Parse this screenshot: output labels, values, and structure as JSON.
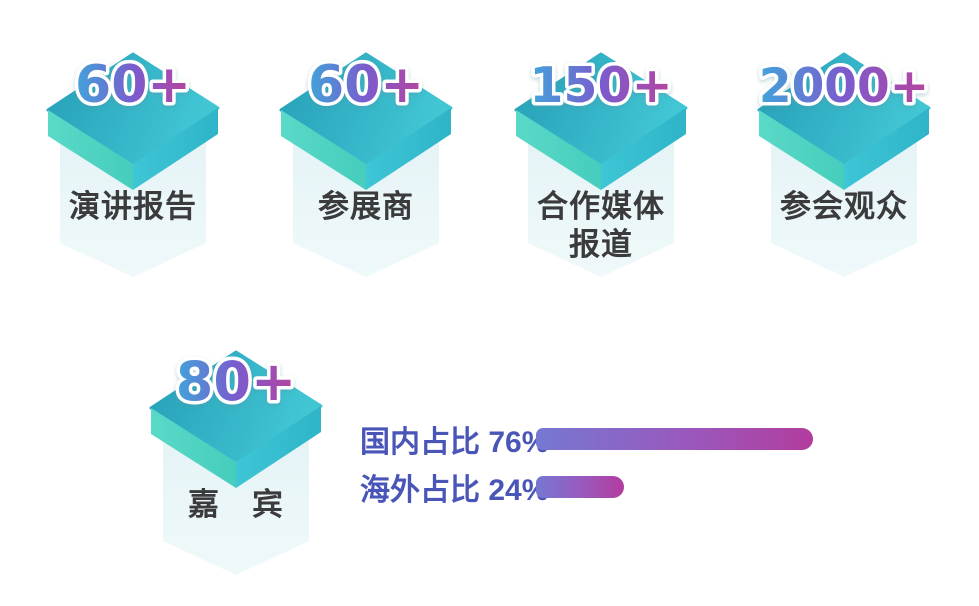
{
  "stats": [
    {
      "value": "60+",
      "label": "演讲报告"
    },
    {
      "value": "60+",
      "label": "参展商"
    },
    {
      "value": "150+",
      "label": "合作媒体\n报道"
    },
    {
      "value": "2000+",
      "label": "参会观众"
    },
    {
      "value": "80+",
      "label": "嘉　宾"
    }
  ],
  "chart_data": {
    "type": "bar",
    "orientation": "horizontal",
    "categories": [
      "国内占比",
      "海外占比"
    ],
    "values": [
      76,
      24
    ],
    "labels": [
      "国内占比 76%",
      "海外占比 24%"
    ],
    "xlim": [
      0,
      100
    ],
    "grid": false,
    "legend": false,
    "bar_gradient": [
      "#7578d2",
      "#b23c9e"
    ],
    "label_color": "#4a55b8"
  },
  "colors": {
    "background": "#ffffff",
    "number_gradient": [
      "#41a4da",
      "#7a5ccd",
      "#b8439f"
    ],
    "number_outline": "#ffffff",
    "platform_top": [
      "#259fb8",
      "#42c6d4"
    ],
    "platform_left": [
      "#5ad9c8",
      "#46cdbc"
    ],
    "platform_right": [
      "#3dc6d6",
      "#2fb4c8"
    ],
    "watermark": "#e3f2f5",
    "stat_label_color": "#3b3b3d"
  }
}
